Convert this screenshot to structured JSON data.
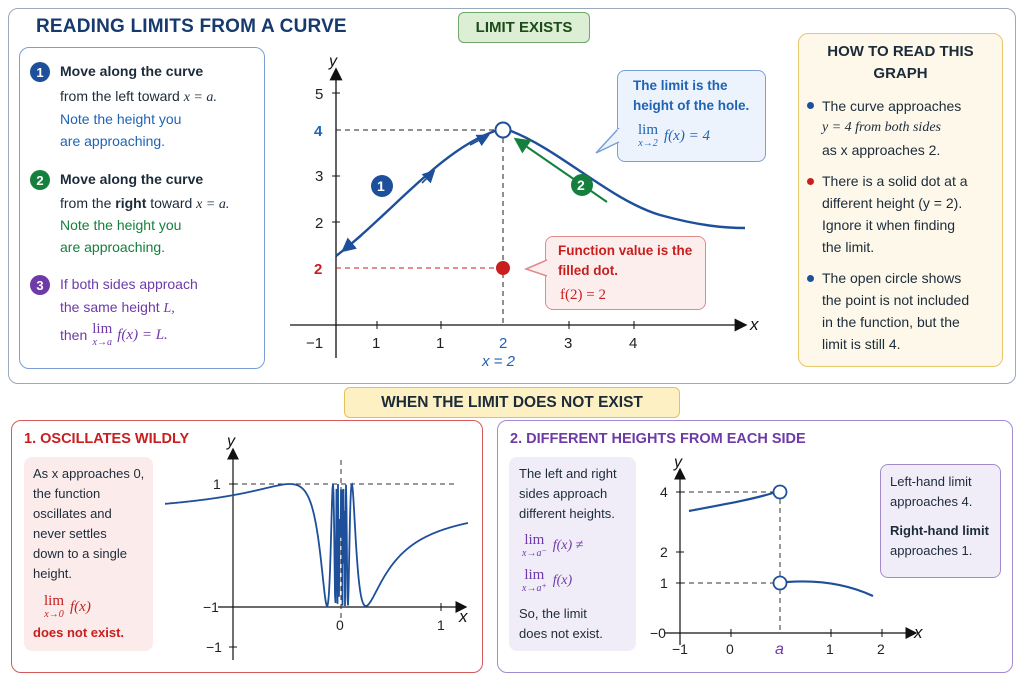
{
  "top": {
    "title": "READING LIMITS FROM A CURVE",
    "badge": "LIMIT EXISTS",
    "steps": [
      {
        "num": "1",
        "title": "Move along the curve",
        "line2_a": "from the left toward ",
        "line2_b": "x = a.",
        "note1": "Note the height you",
        "note2": "are approaching."
      },
      {
        "num": "2",
        "title": "Move along the curve",
        "line2_a": "from the ",
        "line2_bold": "right",
        "line2_c": " toward ",
        "line2_b": "x = a.",
        "note1": "Note the height you",
        "note2": "are approaching."
      },
      {
        "num": "3",
        "line1": "If both sides approach",
        "line2_a": "the same height ",
        "line2_b": "L,",
        "line3_a": "then ",
        "lim_word": "lim",
        "lim_sub": "x→a",
        "line3_b": "f(x) = L."
      }
    ],
    "graph": {
      "y_label": "y",
      "x_label": "x",
      "y_ticks": [
        "5",
        "4",
        "3",
        "2",
        "2"
      ],
      "x_ticks": [
        "−1",
        "1",
        "1",
        "2",
        "3",
        "4"
      ],
      "x_eq": "x = 2",
      "marker1": "1",
      "marker2": "2"
    },
    "callout_blue": {
      "line1": "The limit is the",
      "line2": "height of the hole.",
      "lim_word": "lim",
      "lim_sub": "x→2",
      "expr": "f(x) = 4"
    },
    "callout_red": {
      "line1": "Function value is the",
      "line2": "filled dot.",
      "expr": "f(2) = 2"
    },
    "howto": {
      "title1": "HOW TO READ THIS",
      "title2": "GRAPH",
      "bullets": [
        {
          "l1": "The curve approaches",
          "l2": "y = 4 from both sides",
          "l3": "as x approaches 2."
        },
        {
          "l1": "There is a solid dot at a",
          "l2": "different height (y = 2).",
          "l3": "Ignore it when finding",
          "l4": "the limit."
        },
        {
          "l1": "The open circle shows",
          "l2": "the point is not included",
          "l3": "in the function, but the",
          "l4": "limit is still 4."
        }
      ]
    }
  },
  "dne_banner": "WHEN THE LIMIT DOES NOT EXIST",
  "oscillate": {
    "title": "1. OSCILLATES WILDLY",
    "text": [
      "As x approaches 0,",
      "the function",
      "oscillates and",
      "never settles",
      "down to a single",
      "height."
    ],
    "lim_word": "lim",
    "lim_sub": "x→0",
    "expr": "f(x)",
    "dne": "does not exist.",
    "graph": {
      "y_label": "y",
      "x_label": "x",
      "y_ticks": [
        "1",
        "−1",
        "−1"
      ],
      "x_ticks": [
        "0",
        "1"
      ]
    }
  },
  "different": {
    "title": "2. DIFFERENT HEIGHTS FROM EACH SIDE",
    "text": [
      "The left and right",
      "sides approach",
      "different heights."
    ],
    "lim1_word": "lim",
    "lim1_sub": "x→a⁻",
    "lim1_expr": "f(x) ≠",
    "lim2_word": "lim",
    "lim2_sub": "x→a⁺",
    "lim2_expr": "f(x)",
    "conclusion": [
      "So, the limit",
      "does not exist."
    ],
    "side": {
      "l1": "Left-hand limit",
      "l2": "approaches 4.",
      "b1": "Right-hand limit",
      "b2": "approaches 1."
    },
    "graph": {
      "y_label": "y",
      "x_label": "x",
      "y_ticks": [
        "4",
        "2",
        "1",
        "−0"
      ],
      "x_ticks": [
        "−1",
        "0",
        "a",
        "1",
        "2"
      ]
    }
  },
  "colors": {
    "navy": "#173a6e",
    "blue": "#1e63b5",
    "green": "#15803d",
    "red": "#c81e1e",
    "purple": "#6d3aa8",
    "badge_green": "#dcefd5",
    "badge_yellow": "#fdf1c4"
  }
}
